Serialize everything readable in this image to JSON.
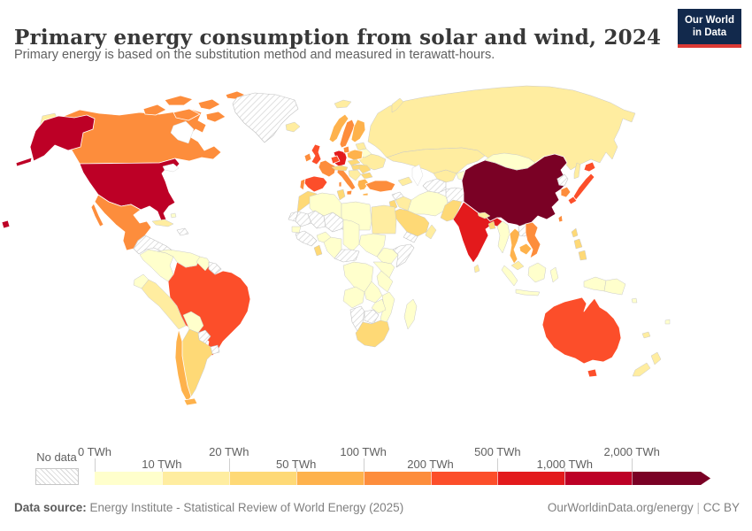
{
  "header": {
    "title": "Primary energy consumption from solar and wind, 2024",
    "subtitle": "Primary energy is based on the substitution method and measured in terawatt-hours.",
    "logo": {
      "line1": "Our World",
      "line2": "in Data",
      "bg_color": "#12294c",
      "accent_color": "#dc3a35"
    }
  },
  "footer": {
    "source_label": "Data source:",
    "source_text": " Energy Institute - Statistical Review of World Energy (2025)",
    "link": "OurWorldinData.org/energy",
    "separator": "|",
    "license": "CC BY"
  },
  "chart_data": {
    "type": "choropleth-map",
    "title": "Primary energy consumption from solar and wind, 2024",
    "subtitle": "Primary energy is based on the substitution method and measured in terawatt-hours.",
    "unit": "TWh",
    "projection": "world",
    "legend": {
      "no_data_label": "No data",
      "tick_labels": [
        "0 TWh",
        "10 TWh",
        "20 TWh",
        "50 TWh",
        "100 TWh",
        "200 TWh",
        "500 TWh",
        "1,000 TWh",
        "2,000 TWh"
      ],
      "thresholds_twh": [
        0,
        10,
        20,
        50,
        100,
        200,
        500,
        1000,
        2000
      ],
      "colors": [
        "#FFFFCC",
        "#FFEDA0",
        "#FED976",
        "#FEB24C",
        "#FD8D3C",
        "#FC4E2A",
        "#E31A1C",
        "#BD0026",
        "#7A0125"
      ],
      "no_data_pattern": "diagonal-hatch",
      "arrow_end": true
    },
    "bucket_labels": [
      "0-10 TWh",
      "10-20 TWh",
      "20-50 TWh",
      "50-100 TWh",
      "100-200 TWh",
      "200-500 TWh",
      "500-1,000 TWh",
      "1,000-2,000 TWh",
      "2,000+ TWh"
    ],
    "countries": {
      "canada": 4,
      "united-states": 7,
      "mexico": 4,
      "greenland": "no-data",
      "central-america": "no-data",
      "cuba": 1,
      "hispaniola": "no-data",
      "bahamas": 0,
      "colombia": 0,
      "venezuela": 0,
      "guyana": 0,
      "suriname-guiana": "no-data",
      "ecuador": 0,
      "peru": 1,
      "brazil": 5,
      "bolivia": 0,
      "paraguay": "no-data",
      "uruguay": "no-data",
      "argentina": 2,
      "chile": 3,
      "iceland": 1,
      "svalbard": 1,
      "united-kingdom": 5,
      "ireland": 4,
      "norway": 3,
      "sweden": 4,
      "finland": 3,
      "denmark": 4,
      "baltics": 1,
      "netherlands-belgium": 5,
      "germany": 6,
      "poland": 3,
      "belarus": 0,
      "ukraine": 1,
      "france": 4,
      "spain": 5,
      "portugal": 4,
      "italy": 4,
      "czech-slovakia": 2,
      "austria-switzerland": 2,
      "hungary": 2,
      "romania": 2,
      "balkans": 1,
      "bulgaria": 2,
      "greece": 3,
      "turkey": 4,
      "caucasus": 1,
      "russia": 1,
      "kazakhstan": 1,
      "uzbekistan": 1,
      "turkmenistan": "no-data",
      "kyrgyzstan-tajikistan": 0,
      "afghanistan": "no-data",
      "syria": "no-data",
      "iraq": 1,
      "iran": 0,
      "jordan-israel": 2,
      "saudi-arabia": 2,
      "yemen": "no-data",
      "oman": 1,
      "morocco": 2,
      "western-sahara": "no-data",
      "algeria": 0,
      "tunisia": 2,
      "libya": 0,
      "egypt": 1,
      "mauritania": "no-data",
      "mali": "no-data",
      "niger": "no-data",
      "chad": 0,
      "sudan": 0,
      "senegal": 0,
      "guinea-coast": "no-data",
      "ghana": 2,
      "burkina-faso": 0,
      "nigeria": 0,
      "cameroon-car": "no-data",
      "ethiopia": 0,
      "somalia": "no-data",
      "kenya-uganda": 0,
      "dr-congo": 0,
      "tanzania": 0,
      "angola": 0,
      "zambia": 0,
      "mozambique": 0,
      "zimbabwe": 0,
      "botswana": "no-data",
      "namibia": "no-data",
      "south-africa": 2,
      "madagascar": 0,
      "china": 8,
      "mongolia": 0,
      "north-korea": "no-data",
      "south-korea": 4,
      "japan": 5,
      "taiwan": 4,
      "india": 6,
      "pakistan": 2,
      "nepal": 1,
      "bangladesh": 2,
      "sri-lanka": 1,
      "myanmar": 0,
      "thailand": 3,
      "laos": "no-data",
      "vietnam": 4,
      "cambodia": 3,
      "malaysia": 1,
      "indonesia": 0,
      "papua-new-guinea": 0,
      "philippines": 2,
      "australia": 5,
      "new-zealand": 1,
      "new-caledonia": 1,
      "fiji": 0,
      "solomon-islands": 0
    }
  }
}
